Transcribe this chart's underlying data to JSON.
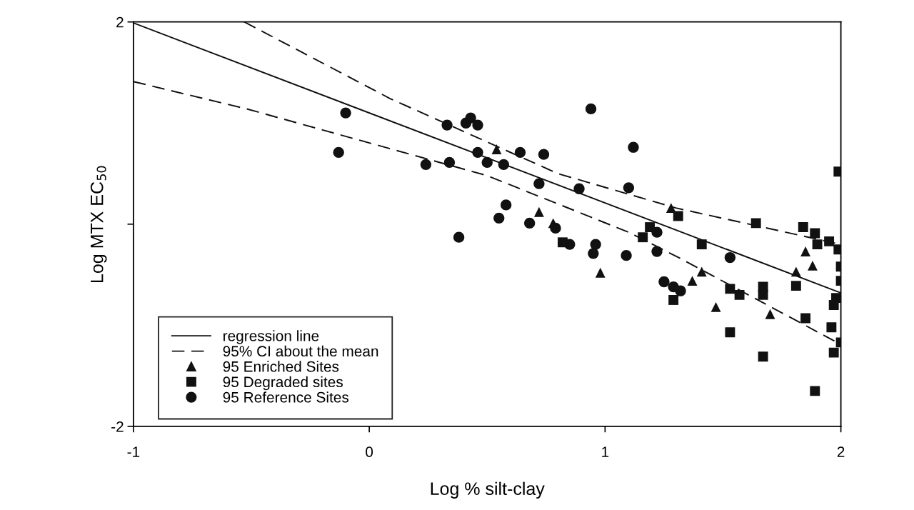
{
  "chart_data": {
    "type": "scatter",
    "xlabel": "Log % silt-clay",
    "ylabel": "Log MTX EC$_{50}$",
    "xlim": [
      -1,
      2
    ],
    "ylim": [
      -2,
      2
    ],
    "xticks": [
      -1,
      0,
      1,
      2
    ],
    "yticks": [
      2,
      {
        "value": 0,
        "label": null
      },
      -2
    ],
    "grid": false,
    "legend": "bottom left",
    "series": [
      {
        "name": "regression line",
        "type": "line",
        "line_style": "solid",
        "marker": "none",
        "color": "#111111",
        "x": [
          -1,
          2
        ],
        "values": [
          1.99,
          -0.68
        ]
      },
      {
        "name": "95% CI about the mean",
        "type": "line",
        "line_style": "dashed",
        "marker": "none",
        "color": "#111111",
        "x": [
          -0.53,
          0.09,
          0.8,
          1.3,
          2
        ],
        "values": [
          2,
          1.24,
          0.5,
          0.16,
          -0.2
        ]
      },
      {
        "type": "line",
        "line_style": "dashed",
        "marker": "none",
        "color": "#111111",
        "x": [
          -1,
          -0.52,
          0.5,
          1.1,
          1.32,
          2
        ],
        "values": [
          1.41,
          1.14,
          0.48,
          -0.08,
          -0.34,
          -1.19
        ]
      },
      {
        "name": "95 Enriched Sites",
        "marker": "triangle",
        "color": "#111111",
        "x": [
          0.54,
          1.28,
          0.72,
          0.78,
          0.98,
          1.41,
          1.37,
          1.47,
          1.7,
          1.81,
          1.85,
          1.88
        ],
        "values": [
          0.74,
          0.16,
          0.12,
          0.01,
          -0.48,
          -0.47,
          -0.56,
          -0.82,
          -0.89,
          -0.47,
          -0.27,
          -0.41
        ]
      },
      {
        "name": "95 Degraded sites",
        "marker": "square",
        "color": "#111111",
        "x": [
          1.99,
          1.31,
          1.64,
          1.84,
          1.89,
          1.41,
          1.16,
          1.19,
          0.82,
          1.9,
          1.95,
          1.99,
          2.0,
          2.0,
          1.98,
          1.97,
          1.53,
          1.57,
          1.67,
          1.67,
          1.81,
          1.85,
          1.96,
          2.0,
          1.97,
          1.29,
          1.53,
          1.67,
          1.89
        ],
        "values": [
          0.52,
          0.08,
          0.01,
          -0.03,
          -0.09,
          -0.2,
          -0.13,
          -0.03,
          -0.18,
          -0.2,
          -0.17,
          -0.25,
          -0.42,
          -0.56,
          -0.73,
          -0.8,
          -0.64,
          -0.7,
          -0.62,
          -0.7,
          -0.61,
          -0.93,
          -1.02,
          -1.17,
          -1.27,
          -0.75,
          -1.07,
          -1.31,
          -1.65
        ]
      },
      {
        "name": "95 Reference Sites",
        "marker": "circle",
        "color": "#111111",
        "x": [
          -0.1,
          -0.13,
          0.24,
          0.33,
          0.41,
          0.43,
          0.46,
          0.34,
          0.46,
          0.5,
          0.57,
          0.64,
          0.74,
          0.72,
          0.89,
          1.1,
          1.12,
          0.94,
          0.58,
          0.55,
          0.68,
          0.79,
          0.85,
          0.96,
          0.95,
          1.09,
          1.22,
          1.22,
          1.25,
          1.29,
          1.32,
          1.53,
          0.38
        ],
        "values": [
          1.1,
          0.71,
          0.59,
          0.98,
          1.0,
          1.05,
          0.98,
          0.61,
          0.71,
          0.61,
          0.59,
          0.71,
          0.69,
          0.4,
          0.35,
          0.36,
          0.76,
          1.14,
          0.19,
          0.06,
          0.01,
          -0.04,
          -0.2,
          -0.2,
          -0.29,
          -0.31,
          -0.08,
          -0.27,
          -0.57,
          -0.62,
          -0.66,
          -0.33,
          -0.13
        ]
      }
    ]
  }
}
